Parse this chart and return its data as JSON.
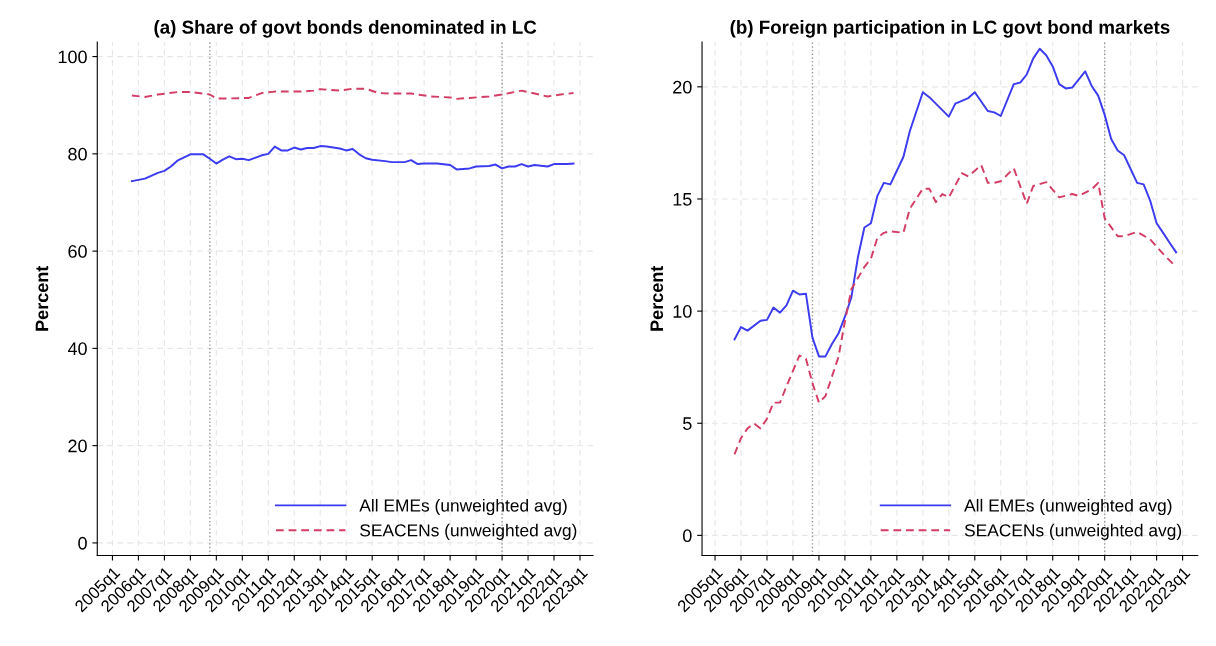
{
  "chart_data": [
    {
      "type": "line",
      "title": "(a) Share of govt bonds denominated in LC",
      "ylabel": "Percent",
      "xlim": [
        "2004-06",
        "2023-07"
      ],
      "ylim": [
        -2.6,
        103
      ],
      "xticks": [
        {
          "value": "2005-01",
          "label": "2005q1"
        },
        {
          "value": "2006-01",
          "label": "2006q1"
        },
        {
          "value": "2007-01",
          "label": "2007q1"
        },
        {
          "value": "2008-01",
          "label": "2008q1"
        },
        {
          "value": "2009-01",
          "label": "2009q1"
        },
        {
          "value": "2010-01",
          "label": "2010q1"
        },
        {
          "value": "2011-01",
          "label": "2011q1"
        },
        {
          "value": "2012-01",
          "label": "2012q1"
        },
        {
          "value": "2013-01",
          "label": "2013q1"
        },
        {
          "value": "2014-01",
          "label": "2014q1"
        },
        {
          "value": "2015-01",
          "label": "2015q1"
        },
        {
          "value": "2016-01",
          "label": "2016q1"
        },
        {
          "value": "2017-01",
          "label": "2017q1"
        },
        {
          "value": "2018-01",
          "label": "2018q1"
        },
        {
          "value": "2019-01",
          "label": "2019q1"
        },
        {
          "value": "2020-01",
          "label": "2020q1"
        },
        {
          "value": "2021-01",
          "label": "2021q1"
        },
        {
          "value": "2022-01",
          "label": "2022q1"
        },
        {
          "value": "2023-01",
          "label": "2023q1"
        }
      ],
      "yticks": [
        0,
        20,
        40,
        60,
        80,
        100
      ],
      "grid": true,
      "legend": "bottom right",
      "ref_lines": [
        {
          "axis": "x",
          "value": "2008-10",
          "color": "#999999",
          "line_style": "dotted"
        },
        {
          "axis": "x",
          "value": "2020-01",
          "color": "#999999",
          "line_style": "dotted"
        }
      ],
      "series": [
        {
          "name": "All EMEs (unweighted avg)",
          "color": "#3b3bf0",
          "line_style": "solid",
          "x": [
            "2005-10",
            "2006-04",
            "2006-10",
            "2007-01",
            "2007-04",
            "2007-07",
            "2008-01",
            "2008-07",
            "2008-10",
            "2009-01",
            "2009-04",
            "2009-07",
            "2009-10",
            "2010-01",
            "2010-04",
            "2010-10",
            "2011-01",
            "2011-04",
            "2011-07",
            "2011-10",
            "2012-01",
            "2012-04",
            "2012-07",
            "2012-10",
            "2013-01",
            "2013-04",
            "2013-10",
            "2014-01",
            "2014-04",
            "2014-07",
            "2014-10",
            "2015-01",
            "2015-07",
            "2015-10",
            "2016-04",
            "2016-07",
            "2016-10",
            "2017-01",
            "2017-07",
            "2018-01",
            "2018-04",
            "2018-10",
            "2019-01",
            "2019-07",
            "2019-10",
            "2020-01",
            "2020-04",
            "2020-07",
            "2020-10",
            "2021-01",
            "2021-04",
            "2021-10",
            "2022-01",
            "2022-07",
            "2022-10"
          ],
          "values": [
            74.4,
            74.9,
            76.1,
            76.5,
            77.4,
            78.6,
            79.9,
            79.9,
            79.0,
            78.0,
            78.8,
            79.5,
            78.9,
            79.0,
            78.7,
            79.7,
            80.0,
            81.5,
            80.7,
            80.7,
            81.3,
            80.9,
            81.2,
            81.2,
            81.6,
            81.5,
            81.1,
            80.7,
            81.0,
            79.9,
            79.1,
            78.8,
            78.5,
            78.3,
            78.3,
            78.7,
            77.9,
            78.0,
            78.0,
            77.7,
            76.8,
            77.0,
            77.4,
            77.5,
            77.8,
            77.0,
            77.4,
            77.4,
            77.9,
            77.4,
            77.7,
            77.4,
            77.9,
            77.9,
            78.0
          ]
        },
        {
          "name": "SEACENs (unweighted avg)",
          "color": "#d43d63",
          "line_style": "dashed",
          "x": [
            "2005-10",
            "2006-04",
            "2006-10",
            "2007-07",
            "2008-01",
            "2008-07",
            "2008-10",
            "2009-01",
            "2009-07",
            "2010-04",
            "2010-10",
            "2011-04",
            "2012-04",
            "2012-10",
            "2013-01",
            "2013-10",
            "2014-04",
            "2014-10",
            "2015-04",
            "2015-10",
            "2016-07",
            "2017-04",
            "2018-01",
            "2018-04",
            "2018-10",
            "2019-07",
            "2020-01",
            "2020-10",
            "2021-04",
            "2021-10",
            "2022-04",
            "2022-10"
          ],
          "values": [
            92.0,
            91.7,
            92.2,
            92.7,
            92.7,
            92.4,
            92.2,
            91.4,
            91.4,
            91.5,
            92.5,
            92.8,
            92.8,
            93.0,
            93.3,
            93.0,
            93.4,
            93.4,
            92.5,
            92.4,
            92.4,
            91.8,
            91.6,
            91.3,
            91.5,
            91.8,
            92.2,
            93.0,
            92.4,
            91.8,
            92.2,
            92.5
          ]
        }
      ]
    },
    {
      "type": "line",
      "title": "(b) Foreign participation in LC govt bond markets",
      "ylabel": "Percent",
      "xlim": [
        "2004-07",
        "2023-08"
      ],
      "ylim": [
        -0.9,
        22.0
      ],
      "xticks": [
        {
          "value": "2005-01",
          "label": "2005q1"
        },
        {
          "value": "2006-01",
          "label": "2006q1"
        },
        {
          "value": "2007-01",
          "label": "2007q1"
        },
        {
          "value": "2008-01",
          "label": "2008q1"
        },
        {
          "value": "2009-01",
          "label": "2009q1"
        },
        {
          "value": "2010-01",
          "label": "2010q1"
        },
        {
          "value": "2011-01",
          "label": "2011q1"
        },
        {
          "value": "2012-01",
          "label": "2012q1"
        },
        {
          "value": "2013-01",
          "label": "2013q1"
        },
        {
          "value": "2014-01",
          "label": "2014q1"
        },
        {
          "value": "2015-01",
          "label": "2015q1"
        },
        {
          "value": "2016-01",
          "label": "2016q1"
        },
        {
          "value": "2017-01",
          "label": "2017q1"
        },
        {
          "value": "2018-01",
          "label": "2018q1"
        },
        {
          "value": "2019-01",
          "label": "2019q1"
        },
        {
          "value": "2020-01",
          "label": "2020q1"
        },
        {
          "value": "2021-01",
          "label": "2021q1"
        },
        {
          "value": "2022-01",
          "label": "2022q1"
        },
        {
          "value": "2023-01",
          "label": "2023q1"
        }
      ],
      "yticks": [
        0,
        5,
        10,
        15,
        20
      ],
      "grid": true,
      "legend": "bottom right",
      "ref_lines": [
        {
          "axis": "x",
          "value": "2008-10",
          "color": "#999999",
          "line_style": "dotted"
        },
        {
          "axis": "x",
          "value": "2020-01",
          "color": "#999999",
          "line_style": "dotted"
        }
      ],
      "series": [
        {
          "name": "All EMEs (unweighted avg)",
          "color": "#3b3bf0",
          "line_style": "solid",
          "x": [
            "2005-10",
            "2006-01",
            "2006-04",
            "2006-10",
            "2007-01",
            "2007-04",
            "2007-07",
            "2007-10",
            "2008-01",
            "2008-04",
            "2008-07",
            "2008-10",
            "2009-01",
            "2009-04",
            "2009-07",
            "2009-10",
            "2010-01",
            "2010-04",
            "2010-07",
            "2010-10",
            "2011-01",
            "2011-04",
            "2011-07",
            "2011-10",
            "2012-04",
            "2012-07",
            "2013-01",
            "2013-04",
            "2014-01",
            "2014-04",
            "2014-10",
            "2015-01",
            "2015-07",
            "2015-10",
            "2016-01",
            "2016-07",
            "2016-10",
            "2017-01",
            "2017-04",
            "2017-07",
            "2017-10",
            "2018-01",
            "2018-04",
            "2018-07",
            "2018-10",
            "2019-04",
            "2019-07",
            "2019-10",
            "2020-01",
            "2020-04",
            "2020-07",
            "2020-10",
            "2021-04",
            "2021-07",
            "2021-10",
            "2022-01",
            "2022-04",
            "2022-07",
            "2022-10"
          ],
          "values": [
            8.74,
            9.29,
            9.13,
            9.57,
            9.61,
            10.16,
            9.93,
            10.26,
            10.91,
            10.74,
            10.77,
            8.82,
            7.98,
            7.98,
            8.53,
            9.0,
            9.75,
            10.62,
            12.4,
            13.73,
            13.92,
            15.14,
            15.72,
            15.65,
            16.87,
            18.03,
            19.76,
            19.54,
            18.67,
            19.25,
            19.5,
            19.76,
            18.92,
            18.86,
            18.7,
            20.12,
            20.19,
            20.55,
            21.27,
            21.7,
            21.41,
            20.91,
            20.12,
            19.93,
            19.97,
            20.69,
            20.04,
            19.61,
            18.75,
            17.67,
            17.16,
            16.95,
            15.72,
            15.65,
            14.93,
            13.92,
            13.49,
            13.05,
            12.62
          ]
        },
        {
          "name": "SEACENs (unweighted avg)",
          "color": "#d43d63",
          "line_style": "dashed",
          "x": [
            "2005-10",
            "2006-01",
            "2006-04",
            "2006-07",
            "2006-10",
            "2007-01",
            "2007-04",
            "2007-07",
            "2007-10",
            "2008-04",
            "2008-07",
            "2008-10",
            "2009-01",
            "2009-04",
            "2009-07",
            "2009-10",
            "2010-01",
            "2010-04",
            "2010-10",
            "2011-01",
            "2011-04",
            "2011-07",
            "2011-10",
            "2012-04",
            "2012-07",
            "2013-01",
            "2013-04",
            "2013-07",
            "2013-10",
            "2014-01",
            "2014-07",
            "2014-10",
            "2015-04",
            "2015-07",
            "2015-10",
            "2016-01",
            "2016-07",
            "2017-01",
            "2017-04",
            "2017-10",
            "2018-04",
            "2018-10",
            "2019-01",
            "2019-07",
            "2019-10",
            "2020-01",
            "2020-07",
            "2020-10",
            "2021-04",
            "2021-10",
            "2022-04",
            "2022-10"
          ],
          "values": [
            3.61,
            4.34,
            4.77,
            4.99,
            4.77,
            5.2,
            5.92,
            5.92,
            6.65,
            8.02,
            7.88,
            6.79,
            5.92,
            6.21,
            7.08,
            7.95,
            9.54,
            10.98,
            11.97,
            12.33,
            13.27,
            13.49,
            13.56,
            13.49,
            14.57,
            15.46,
            15.46,
            14.86,
            15.22,
            15.07,
            16.15,
            16.01,
            16.51,
            15.72,
            15.72,
            15.79,
            16.37,
            14.78,
            15.58,
            15.75,
            15.07,
            15.22,
            15.14,
            15.43,
            15.72,
            14.14,
            13.34,
            13.34,
            13.53,
            13.2,
            12.55,
            11.97
          ]
        }
      ]
    }
  ]
}
